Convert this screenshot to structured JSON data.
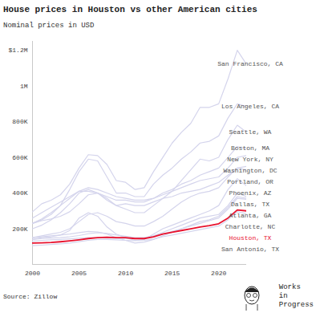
{
  "chart_data": {
    "type": "line",
    "title": "House prices in Houston vs other American cities",
    "subtitle": "Nominal prices in USD",
    "source": "Source: Zillow",
    "annotations": [
      "Works in Progress"
    ],
    "x": [
      2000,
      2001,
      2002,
      2003,
      2004,
      2005,
      2006,
      2007,
      2008,
      2009,
      2010,
      2011,
      2012,
      2013,
      2014,
      2015,
      2016,
      2017,
      2018,
      2019,
      2020,
      2021,
      2022,
      2023
    ],
    "xlim": [
      2000,
      2023
    ],
    "xticks": [
      2000,
      2005,
      2010,
      2015,
      2020
    ],
    "ylim": [
      0,
      1250000
    ],
    "yticks": [
      {
        "value": 200000,
        "label": "200K"
      },
      {
        "value": 400000,
        "label": "400K"
      },
      {
        "value": 600000,
        "label": "600K"
      },
      {
        "value": 800000,
        "label": "800K"
      },
      {
        "value": 1000000,
        "label": "1M"
      },
      {
        "value": 1200000,
        "label": "$1.2M"
      }
    ],
    "grid": false,
    "series": [
      {
        "name": "San Francisco, CA",
        "color": "#d4d4ec",
        "values": [
          295000,
          340000,
          360000,
          390000,
          450000,
          540000,
          615000,
          610000,
          560000,
          470000,
          460000,
          420000,
          430000,
          520000,
          600000,
          680000,
          740000,
          790000,
          880000,
          880000,
          900000,
          1040000,
          1200000,
          1120000
        ]
      },
      {
        "name": "Los Angeles, CA",
        "color": "#d4d4ec",
        "values": [
          230000,
          250000,
          280000,
          330000,
          420000,
          520000,
          590000,
          580000,
          490000,
          400000,
          400000,
          380000,
          380000,
          450000,
          500000,
          540000,
          590000,
          630000,
          680000,
          690000,
          720000,
          820000,
          900000,
          885000
        ]
      },
      {
        "name": "Seattle, WA",
        "color": "#d4d4ec",
        "values": [
          230000,
          245000,
          255000,
          270000,
          295000,
          340000,
          390000,
          400000,
          370000,
          330000,
          310000,
          290000,
          290000,
          330000,
          370000,
          410000,
          470000,
          530000,
          590000,
          580000,
          600000,
          700000,
          780000,
          740000
        ]
      },
      {
        "name": "Boston, MA",
        "color": "#d4d4ec",
        "values": [
          260000,
          290000,
          320000,
          350000,
          380000,
          410000,
          410000,
          400000,
          380000,
          360000,
          360000,
          350000,
          350000,
          370000,
          400000,
          420000,
          450000,
          470000,
          500000,
          520000,
          540000,
          600000,
          660000,
          650000
        ]
      },
      {
        "name": "New York, NY",
        "color": "#d4d4ec",
        "values": [
          230000,
          255000,
          290000,
          330000,
          370000,
          410000,
          430000,
          420000,
          400000,
          380000,
          370000,
          360000,
          360000,
          370000,
          390000,
          410000,
          430000,
          450000,
          470000,
          480000,
          490000,
          540000,
          600000,
          610000
        ]
      },
      {
        "name": "Portland, OR",
        "color": "#d4d4ec",
        "values": [
          150000,
          160000,
          170000,
          180000,
          200000,
          240000,
          280000,
          290000,
          270000,
          240000,
          230000,
          215000,
          215000,
          240000,
          270000,
          310000,
          350000,
          380000,
          400000,
          410000,
          430000,
          490000,
          540000,
          530000
        ]
      },
      {
        "name": "Washington, DC",
        "color": "#d4d4ec",
        "values": [
          200000,
          220000,
          250000,
          290000,
          340000,
          400000,
          420000,
          400000,
          360000,
          330000,
          340000,
          330000,
          330000,
          350000,
          370000,
          380000,
          400000,
          410000,
          420000,
          440000,
          460000,
          500000,
          540000,
          550000
        ]
      },
      {
        "name": "Phoenix, AZ",
        "color": "#d4d4ec",
        "values": [
          140000,
          150000,
          155000,
          165000,
          190000,
          260000,
          290000,
          270000,
          210000,
          170000,
          150000,
          135000,
          140000,
          170000,
          200000,
          220000,
          240000,
          260000,
          280000,
          300000,
          330000,
          420000,
          480000,
          440000
        ]
      },
      {
        "name": "Dallas, TX",
        "color": "#d4d4ec",
        "values": [
          130000,
          135000,
          138000,
          140000,
          143000,
          147000,
          150000,
          150000,
          148000,
          145000,
          145000,
          143000,
          148000,
          160000,
          180000,
          200000,
          220000,
          240000,
          260000,
          270000,
          280000,
          330000,
          400000,
          380000
        ]
      },
      {
        "name": "Atlanta, GA",
        "color": "#d4d4ec",
        "values": [
          150000,
          155000,
          160000,
          165000,
          170000,
          178000,
          185000,
          182000,
          170000,
          150000,
          135000,
          120000,
          125000,
          140000,
          160000,
          180000,
          200000,
          220000,
          240000,
          250000,
          270000,
          320000,
          380000,
          370000
        ]
      },
      {
        "name": "Charlotte, NC",
        "color": "#d4d4ec",
        "values": [
          140000,
          145000,
          148000,
          150000,
          155000,
          162000,
          172000,
          178000,
          174000,
          165000,
          158000,
          150000,
          150000,
          158000,
          170000,
          185000,
          200000,
          215000,
          230000,
          245000,
          260000,
          310000,
          370000,
          365000
        ]
      },
      {
        "name": "Houston, TX",
        "color": "#e8112d",
        "values": [
          120000,
          121000,
          123000,
          127000,
          132000,
          138000,
          145000,
          150000,
          152000,
          150000,
          150000,
          145000,
          145000,
          155000,
          170000,
          180000,
          190000,
          200000,
          210000,
          218000,
          228000,
          260000,
          305000,
          300000
        ]
      },
      {
        "name": "San Antonio, TX",
        "color": "#d4d4ec",
        "values": [
          105000,
          108000,
          112000,
          115000,
          120000,
          128000,
          135000,
          140000,
          140000,
          138000,
          135000,
          133000,
          135000,
          142000,
          155000,
          165000,
          175000,
          185000,
          195000,
          205000,
          215000,
          250000,
          295000,
          285000
        ]
      }
    ]
  }
}
